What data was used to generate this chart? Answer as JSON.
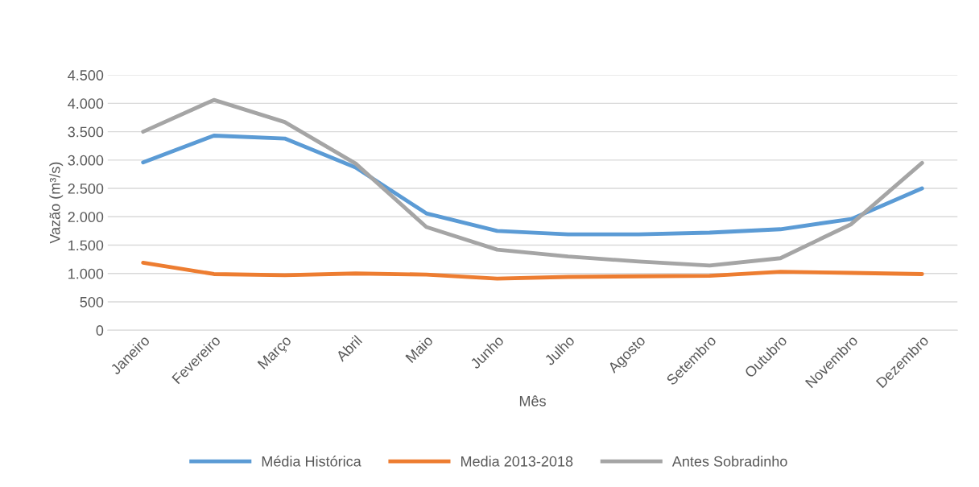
{
  "chart_data": {
    "type": "line",
    "xlabel": "Mês",
    "ylabel": "Vazão (m³/s)",
    "categories": [
      "Janeiro",
      "Fevereiro",
      "Março",
      "Abril",
      "Maio",
      "Junho",
      "Julho",
      "Agosto",
      "Setembro",
      "Outubro",
      "Novembro",
      "Dezembro"
    ],
    "series": [
      {
        "name": "Média Histórica",
        "color": "#5b9bd5",
        "values": [
          2960,
          3430,
          3380,
          2870,
          2060,
          1750,
          1690,
          1690,
          1720,
          1780,
          1960,
          2500
        ]
      },
      {
        "name": "Media 2013-2018",
        "color": "#ed7d31",
        "values": [
          1190,
          990,
          970,
          1000,
          980,
          910,
          940,
          950,
          960,
          1030,
          1010,
          990
        ]
      },
      {
        "name": "Antes Sobradinho",
        "color": "#a5a5a5",
        "values": [
          3500,
          4060,
          3670,
          2940,
          1820,
          1420,
          1300,
          1210,
          1140,
          1270,
          1870,
          2950
        ]
      }
    ],
    "ylim": [
      0,
      4500
    ],
    "yticks": [
      0,
      500,
      {
        "value": 1000,
        "label": "1.000"
      },
      {
        "value": 1500,
        "label": "1.500"
      },
      {
        "value": 2000,
        "label": "2.000"
      },
      {
        "value": 2500,
        "label": "2.500"
      },
      {
        "value": 3000,
        "label": "3.000"
      },
      {
        "value": 3500,
        "label": "3.500"
      },
      {
        "value": 4000,
        "label": "4.000"
      },
      {
        "value": 4500,
        "label": "4.500"
      }
    ],
    "grid": "y",
    "legend": "bottom",
    "marker": "none",
    "line_style": "solid"
  }
}
